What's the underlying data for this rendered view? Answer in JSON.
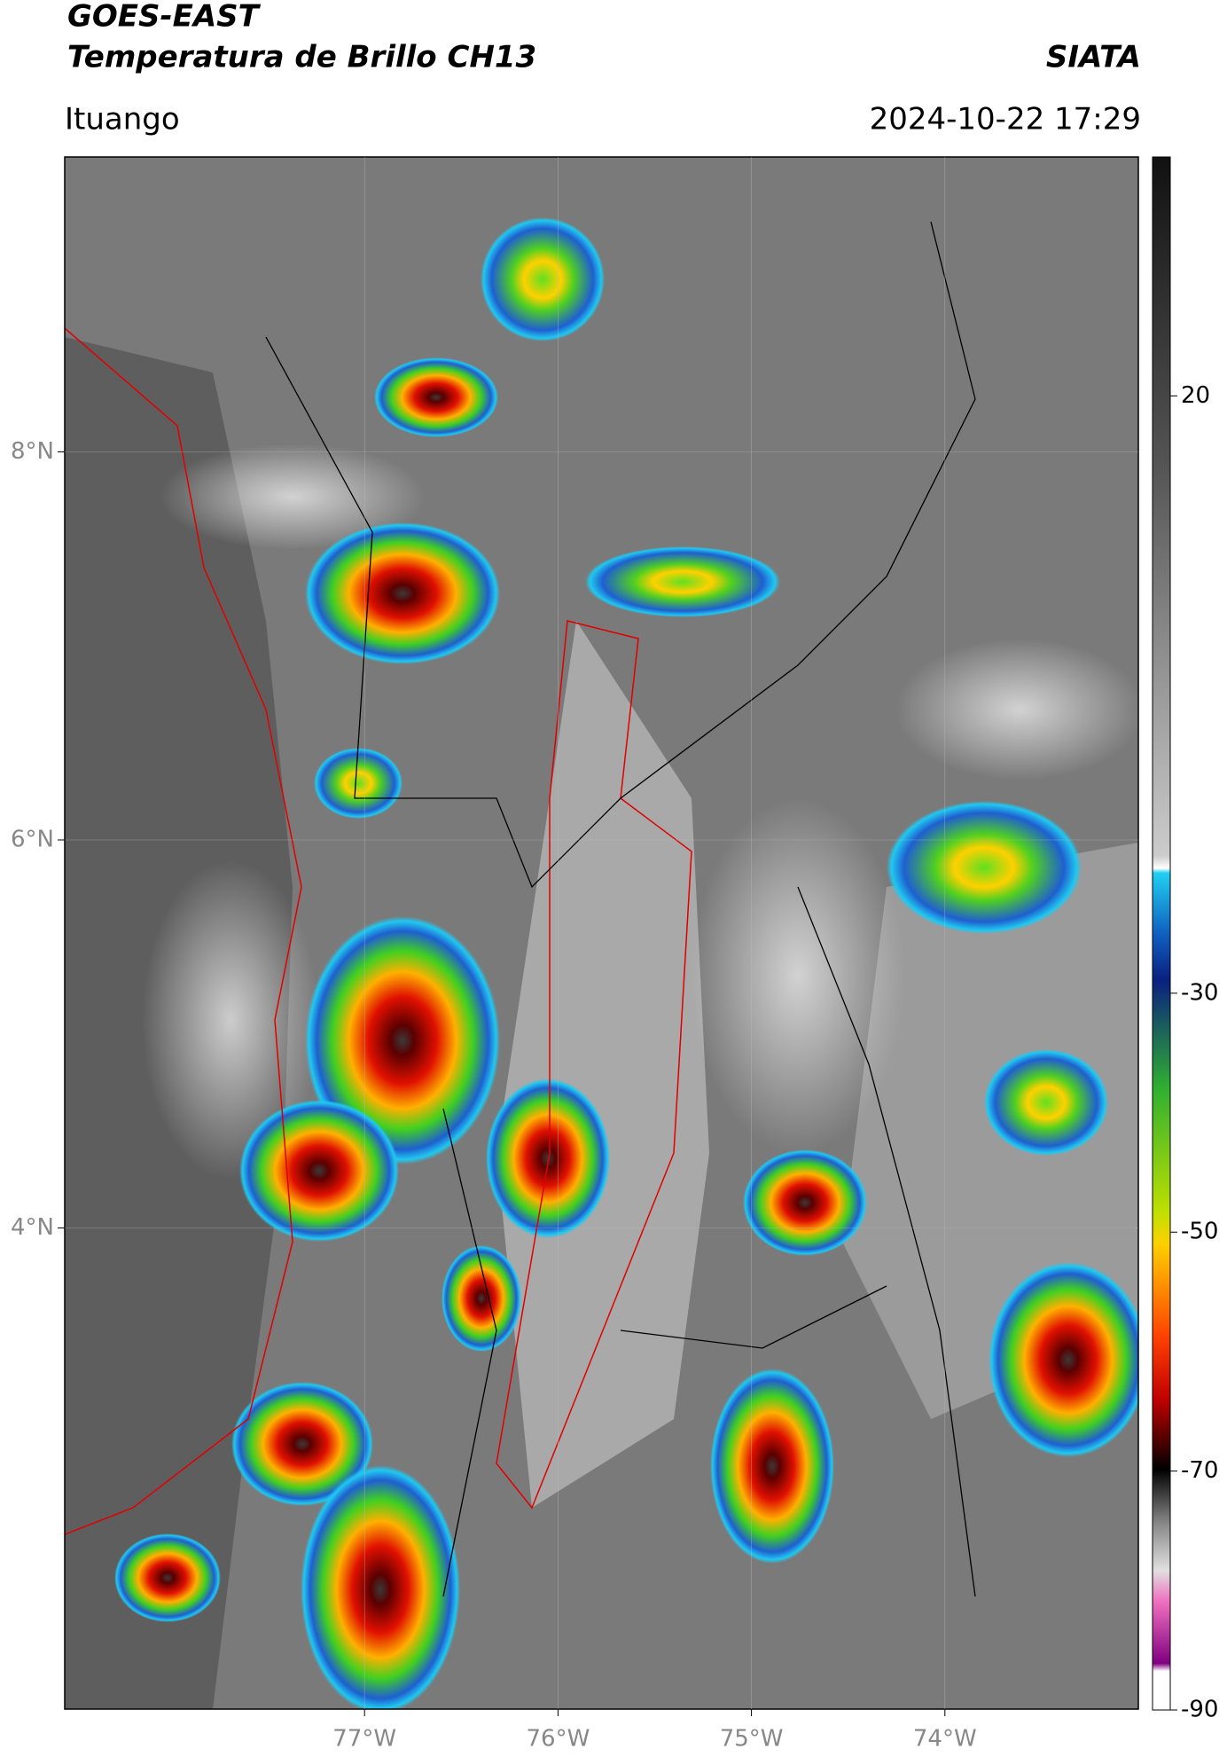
{
  "header": {
    "title": "GOES-EAST",
    "subtitle": "Temperatura de Brillo CH13",
    "source": "SIATA",
    "location": "Ituango",
    "timestamp": "2024-10-22 17:29"
  },
  "map": {
    "xlim": [
      -78.55,
      -73.0
    ],
    "ylim": [
      1.52,
      9.52
    ],
    "xticks": [
      {
        "value": -77,
        "label": "77°W"
      },
      {
        "value": -76,
        "label": "76°W"
      },
      {
        "value": -75,
        "label": "75°W"
      },
      {
        "value": -74,
        "label": "74°W"
      }
    ],
    "yticks": [
      {
        "value": 8,
        "label": "8°N"
      },
      {
        "value": 6,
        "label": "6°N"
      },
      {
        "value": 4,
        "label": "4°N"
      }
    ],
    "grid": true
  },
  "colorbar": {
    "lim": [
      -90,
      40
    ],
    "ticks": [
      20,
      -30,
      -50,
      -70,
      -90
    ]
  }
}
